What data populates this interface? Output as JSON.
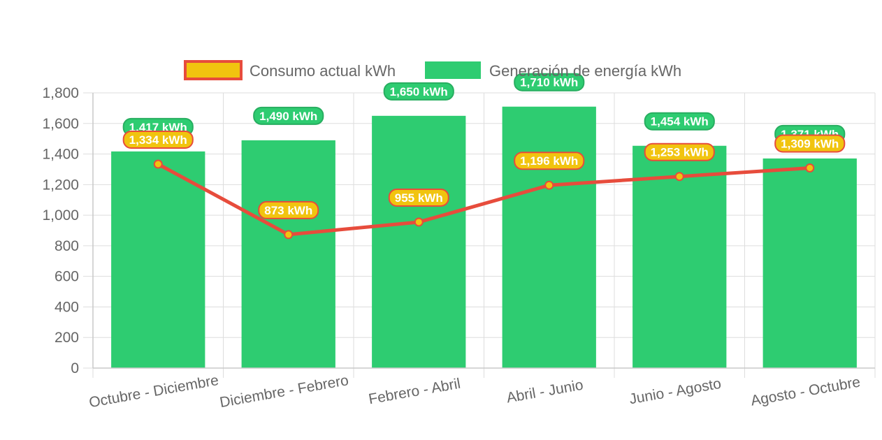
{
  "chart_data": {
    "type": "bar",
    "categories": [
      "Octubre - Diciembre",
      "Diciembre - Febrero",
      "Febrero - Abril",
      "Abril - Junio",
      "Junio - Agosto",
      "Agosto - Octubre"
    ],
    "ylim": [
      0,
      1800
    ],
    "yticks": [
      0,
      200,
      400,
      600,
      800,
      1000,
      1200,
      1400,
      1600,
      1800
    ],
    "ytick_labels": [
      "0",
      "200",
      "400",
      "600",
      "800",
      "1,000",
      "1,200",
      "1,400",
      "1,600",
      "1,800"
    ],
    "grid": true,
    "legend_position": "top",
    "series": [
      {
        "name": "Consumo actual kWh",
        "type": "line",
        "values": [
          1334,
          873,
          955,
          1196,
          1253,
          1309
        ],
        "labels": [
          "1,334 kWh",
          "873 kWh",
          "955 kWh",
          "1,196 kWh",
          "1,253 kWh",
          "1,309 kWh"
        ],
        "color": "#e74c3c",
        "fill_color": "#f1c40f"
      },
      {
        "name": "Generación de energía kWh",
        "type": "bar",
        "values": [
          1417,
          1490,
          1650,
          1710,
          1454,
          1371
        ],
        "labels": [
          "1,417 kWh",
          "1,490 kWh",
          "1,650 kWh",
          "1,710 kWh",
          "1,454 kWh",
          "1,371 kWh"
        ],
        "color": "#2ecc71",
        "border_color": "#27ae60"
      }
    ]
  }
}
